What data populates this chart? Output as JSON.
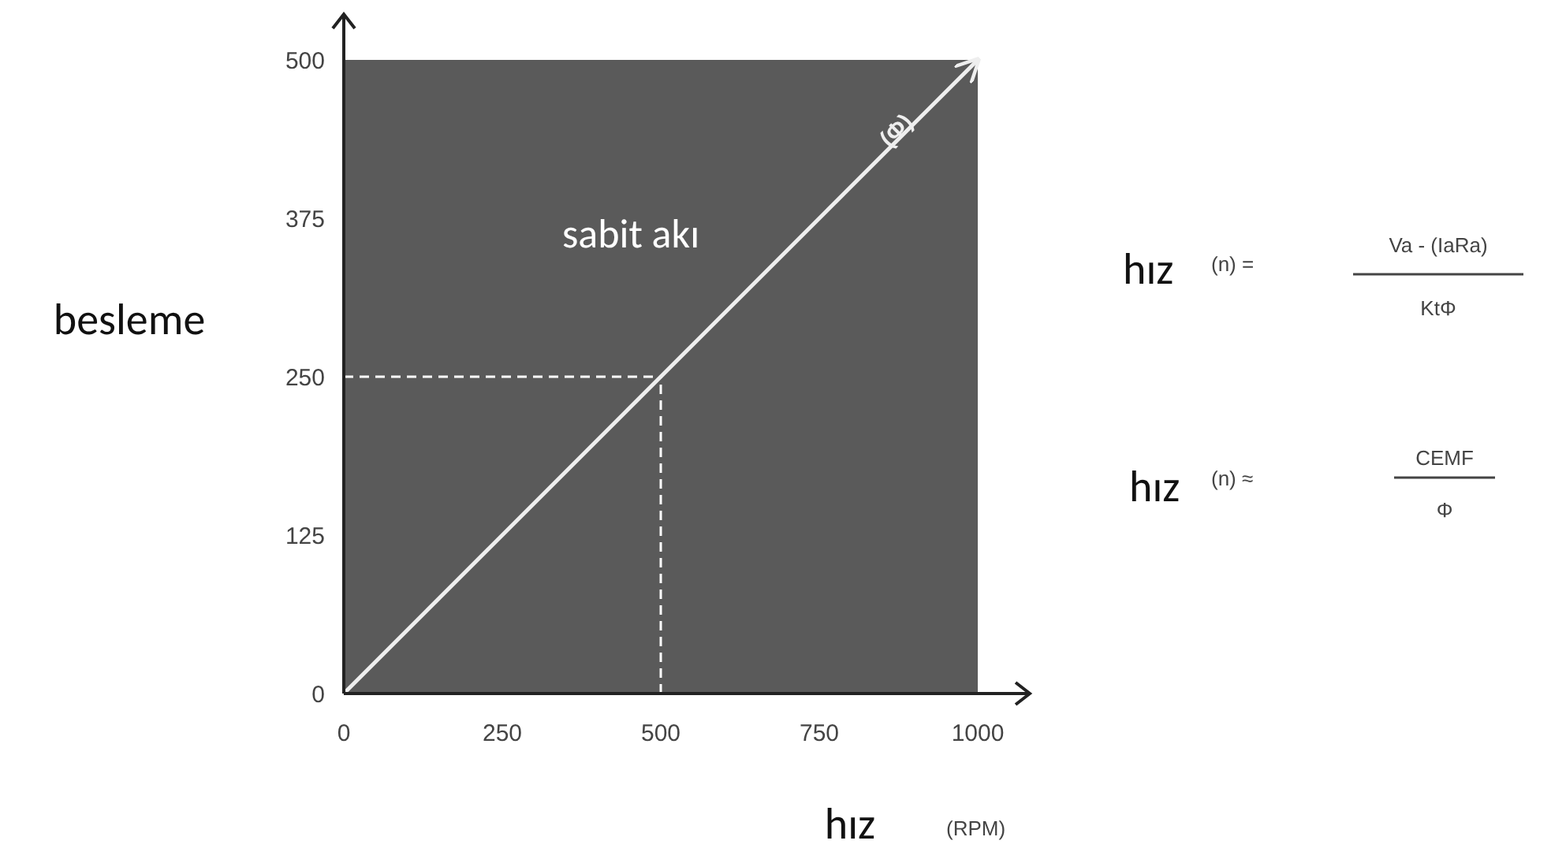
{
  "chart_data": {
    "type": "line",
    "xlabel": "hız",
    "ylabel": "besleme",
    "x": [
      0,
      1000
    ],
    "series": [
      {
        "name": "(Φ)",
        "color": "#eeeeee",
        "values": [
          0,
          500
        ]
      }
    ],
    "xlim": [
      0,
      1000
    ],
    "xticks": [
      0,
      250,
      500,
      750,
      1000
    ],
    "ylim": [
      0,
      500
    ],
    "yticks": [
      0,
      125,
      250,
      375,
      500
    ],
    "grid": false,
    "marker": "none",
    "line_style": "solid",
    "ref_lines": [
      {
        "axis": "x",
        "value": 500,
        "color": "#ffffff",
        "line_style": "dashed"
      },
      {
        "axis": "y",
        "value": 250,
        "color": "#ffffff",
        "line_style": "dashed"
      }
    ],
    "annotations": [
      "sabit akı",
      "(RPM)",
      "hız",
      "(n) =",
      "Va - (IaRa)",
      "KtΦ",
      "hız",
      "(n) ≈",
      "CEMF",
      "Φ"
    ]
  }
}
